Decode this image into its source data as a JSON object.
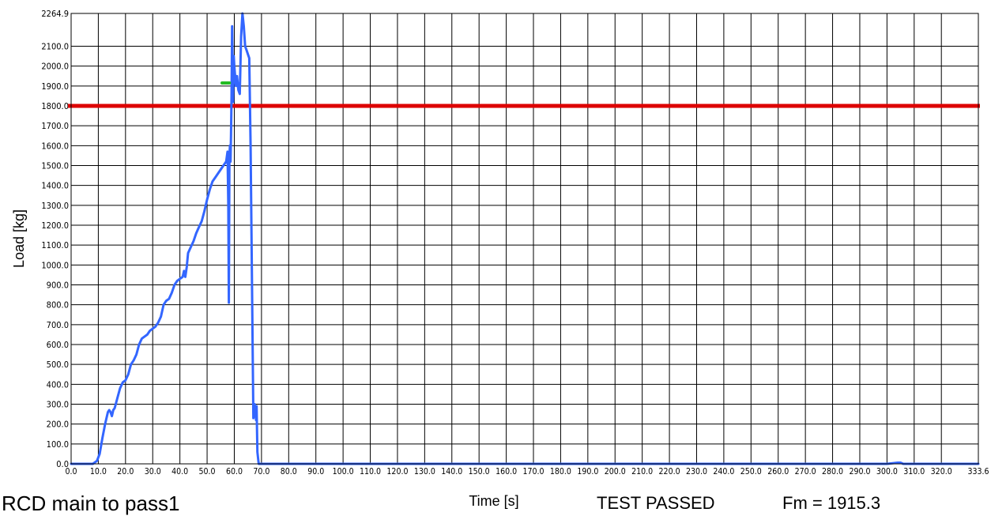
{
  "chart_data": {
    "type": "line",
    "xlabel": "Time [s]",
    "ylabel": "Load [kg]",
    "xlim": [
      0,
      333.6
    ],
    "ylim": [
      0,
      2264.9
    ],
    "grid": true,
    "x_ticks": [
      {
        "value": 0,
        "label": "0.0"
      },
      {
        "value": 10,
        "label": "10.0"
      },
      {
        "value": 20,
        "label": "20.0"
      },
      {
        "value": 30,
        "label": "30.0"
      },
      {
        "value": 40,
        "label": "40.0"
      },
      {
        "value": 50,
        "label": "50.0"
      },
      {
        "value": 60,
        "label": "60.0"
      },
      {
        "value": 70,
        "label": "70.0"
      },
      {
        "value": 80,
        "label": "80.0"
      },
      {
        "value": 90,
        "label": "90.0"
      },
      {
        "value": 100,
        "label": "100.0"
      },
      {
        "value": 110,
        "label": "110.0"
      },
      {
        "value": 120,
        "label": "120.0"
      },
      {
        "value": 130,
        "label": "130.0"
      },
      {
        "value": 140,
        "label": "140.0"
      },
      {
        "value": 150,
        "label": "150.0"
      },
      {
        "value": 160,
        "label": "160.0"
      },
      {
        "value": 170,
        "label": "170.0"
      },
      {
        "value": 180,
        "label": "180.0"
      },
      {
        "value": 190,
        "label": "190.0"
      },
      {
        "value": 200,
        "label": "200.0"
      },
      {
        "value": 210,
        "label": "210.0"
      },
      {
        "value": 220,
        "label": "220.0"
      },
      {
        "value": 230,
        "label": "230.0"
      },
      {
        "value": 240,
        "label": "240.0"
      },
      {
        "value": 250,
        "label": "250.0"
      },
      {
        "value": 260,
        "label": "260.0"
      },
      {
        "value": 270,
        "label": "270.0"
      },
      {
        "value": 280,
        "label": "280.0"
      },
      {
        "value": 290,
        "label": "290.0"
      },
      {
        "value": 300,
        "label": "300.0"
      },
      {
        "value": 310,
        "label": "310.0"
      },
      {
        "value": 320,
        "label": "320.0"
      },
      {
        "value": 333.6,
        "label": "333.6"
      }
    ],
    "y_ticks": [
      {
        "value": 0,
        "label": "0.0"
      },
      {
        "value": 100,
        "label": "100.0"
      },
      {
        "value": 200,
        "label": "200.0"
      },
      {
        "value": 300,
        "label": "300.0"
      },
      {
        "value": 400,
        "label": "400.0"
      },
      {
        "value": 500,
        "label": "500.0"
      },
      {
        "value": 600,
        "label": "600.0"
      },
      {
        "value": 700,
        "label": "700.0"
      },
      {
        "value": 800,
        "label": "800.0"
      },
      {
        "value": 900,
        "label": "900.0"
      },
      {
        "value": 1000,
        "label": "1000.0"
      },
      {
        "value": 1100,
        "label": "1100.0"
      },
      {
        "value": 1200,
        "label": "1200.0"
      },
      {
        "value": 1300,
        "label": "1300.0"
      },
      {
        "value": 1400,
        "label": "1400.0"
      },
      {
        "value": 1500,
        "label": "1500.0"
      },
      {
        "value": 1600,
        "label": "1600.0"
      },
      {
        "value": 1700,
        "label": "1700.0"
      },
      {
        "value": 1800,
        "label": "1800.0"
      },
      {
        "value": 1900,
        "label": "1900.0"
      },
      {
        "value": 2000,
        "label": "2000.0"
      },
      {
        "value": 2100,
        "label": "2100.0"
      },
      {
        "value": 2264.9,
        "label": "2264.9"
      }
    ],
    "series": [
      {
        "color": "#3366ff",
        "x": [
          0,
          8,
          9.5,
          10.5,
          11.5,
          12.5,
          13.5,
          14,
          14.5,
          15,
          15.5,
          16,
          17,
          18,
          19,
          20,
          21,
          22,
          23,
          24,
          25,
          26,
          27,
          28,
          29,
          30,
          31,
          32,
          33,
          34,
          35,
          36,
          37,
          38,
          39,
          40,
          41,
          41.5,
          42,
          42.5,
          43,
          44,
          45,
          46,
          47,
          48,
          49,
          50,
          51,
          52,
          53,
          54,
          55,
          56,
          57,
          57.5,
          57.8,
          58,
          58.2,
          58.4,
          58.6,
          58.8,
          59,
          59.2,
          59.5,
          59.8,
          60,
          60.3,
          60.6,
          61,
          61.5,
          62,
          62.5,
          63,
          63.5,
          64,
          64.5,
          65,
          65.5,
          66,
          67,
          67.5,
          68,
          68.2,
          68.5,
          68.8,
          69,
          69.3,
          69.6,
          70,
          90,
          200,
          300,
          304,
          305,
          306,
          333.6
        ],
        "y": [
          0,
          0,
          15,
          50,
          130,
          200,
          260,
          270,
          260,
          240,
          270,
          280,
          330,
          380,
          410,
          420,
          450,
          500,
          520,
          550,
          600,
          630,
          640,
          650,
          670,
          680,
          690,
          710,
          740,
          800,
          820,
          830,
          860,
          900,
          920,
          930,
          940,
          970,
          940,
          990,
          1060,
          1090,
          1120,
          1160,
          1190,
          1220,
          1270,
          1330,
          1380,
          1420,
          1440,
          1460,
          1480,
          1500,
          1520,
          1570,
          1300,
          810,
          1550,
          1600,
          1520,
          1650,
          1850,
          2200,
          1820,
          2050,
          2000,
          1950,
          1900,
          1950,
          1880,
          1860,
          2150,
          2264.9,
          2200,
          2100,
          2080,
          2060,
          2040,
          1600,
          230,
          300,
          220,
          290,
          60,
          20,
          0,
          0,
          0,
          0,
          0,
          0,
          0,
          6,
          6,
          0,
          0
        ]
      },
      {
        "color": "#22bb22",
        "x": [
          55.5,
          58.2
        ],
        "y": [
          1915.3,
          1915.3
        ]
      }
    ],
    "annotations": [
      {
        "type": "threshold",
        "value": 1800,
        "color": "#dd0000"
      }
    ]
  },
  "footer": {
    "title": "RCD main to pass1",
    "status": "TEST PASSED",
    "fm": "Fm = 1915.3"
  }
}
